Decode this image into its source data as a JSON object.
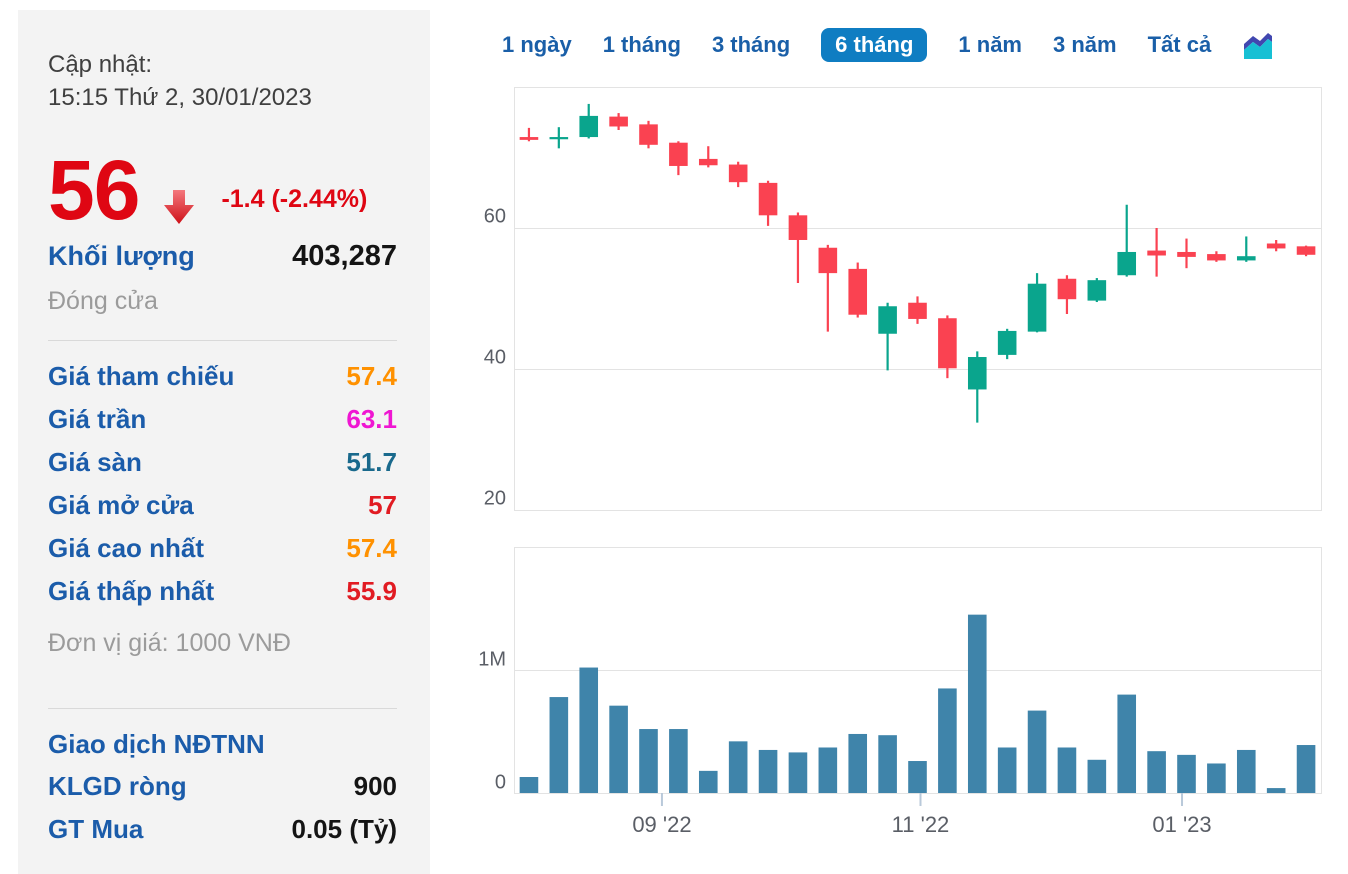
{
  "quote": {
    "updated_label": "Cập nhật:",
    "updated_time": "15:15 Thứ 2, 30/01/2023",
    "price": "56",
    "change": "-1.4 (-2.44%)",
    "direction_icon": "down-arrow-icon",
    "volume_label": "Khối lượng",
    "volume_value": "403,287",
    "close_label": "Đóng cửa",
    "price_rows": [
      {
        "label": "Giá tham chiếu",
        "value": "57.4",
        "color": "#ff9100"
      },
      {
        "label": "Giá trần",
        "value": "63.1",
        "color": "#ef16d2"
      },
      {
        "label": "Giá sàn",
        "value": "51.7",
        "color": "#19698c"
      },
      {
        "label": "Giá mở cửa",
        "value": "57",
        "color": "#e11b22"
      },
      {
        "label": "Giá cao nhất",
        "value": "57.4",
        "color": "#ff9100"
      },
      {
        "label": "Giá thấp nhất",
        "value": "55.9",
        "color": "#e11b22"
      }
    ],
    "unit_note": "Đơn vị giá: 1000 VNĐ",
    "foreign_title": "Giao dịch NĐTNN",
    "foreign_rows": [
      {
        "label": "KLGD ròng",
        "value": "900"
      },
      {
        "label": "GT Mua",
        "value": "0.05 (Tỷ)"
      }
    ],
    "colors": {
      "price_red": "#df0613",
      "label_blue": "#1b5caa",
      "muted_gray": "#9b9b9b"
    }
  },
  "tabs": {
    "items": [
      "1 ngày",
      "1 tháng",
      "3 tháng",
      "6 tháng",
      "1 năm",
      "3 năm",
      "Tất cả"
    ],
    "active_index": 3,
    "active_bg": "#0f7dc2",
    "text_color": "#1a5fa8",
    "icon": "area-chart-icon"
  },
  "chart_data": [
    {
      "type": "candlestick",
      "title": "",
      "xlabel": "",
      "ylabel": "",
      "ylim": [
        20,
        80
      ],
      "grid": true,
      "up_color": "#0aa58d",
      "down_color": "#fa4251",
      "yticks": [
        {
          "label": "60",
          "value": 60
        },
        {
          "label": "40",
          "value": 40
        },
        {
          "label": "20",
          "value": 20
        }
      ],
      "candles": [
        {
          "o": 72.9,
          "h": 74.2,
          "l": 72.3,
          "c": 72.5
        },
        {
          "o": 72.7,
          "h": 74.3,
          "l": 71.3,
          "c": 72.9
        },
        {
          "o": 72.9,
          "h": 77.6,
          "l": 72.7,
          "c": 75.9
        },
        {
          "o": 75.8,
          "h": 76.3,
          "l": 73.9,
          "c": 74.4
        },
        {
          "o": 74.7,
          "h": 75.2,
          "l": 71.3,
          "c": 71.8
        },
        {
          "o": 72.1,
          "h": 72.3,
          "l": 67.5,
          "c": 68.8
        },
        {
          "o": 69.8,
          "h": 71.6,
          "l": 68.6,
          "c": 68.9
        },
        {
          "o": 69.0,
          "h": 69.4,
          "l": 65.8,
          "c": 66.5
        },
        {
          "o": 66.4,
          "h": 66.7,
          "l": 60.3,
          "c": 61.8
        },
        {
          "o": 61.8,
          "h": 62.2,
          "l": 52.2,
          "c": 58.3
        },
        {
          "o": 57.2,
          "h": 57.6,
          "l": 45.3,
          "c": 53.6
        },
        {
          "o": 54.2,
          "h": 55.1,
          "l": 47.3,
          "c": 47.7
        },
        {
          "o": 45.0,
          "h": 49.4,
          "l": 39.8,
          "c": 48.9
        },
        {
          "o": 49.4,
          "h": 50.3,
          "l": 46.4,
          "c": 47.1
        },
        {
          "o": 47.2,
          "h": 47.6,
          "l": 38.7,
          "c": 40.1
        },
        {
          "o": 37.1,
          "h": 42.5,
          "l": 32.4,
          "c": 41.7
        },
        {
          "o": 42.0,
          "h": 45.7,
          "l": 41.4,
          "c": 45.4
        },
        {
          "o": 45.3,
          "h": 53.6,
          "l": 45.2,
          "c": 52.1
        },
        {
          "o": 52.8,
          "h": 53.3,
          "l": 47.8,
          "c": 49.9
        },
        {
          "o": 49.7,
          "h": 52.9,
          "l": 49.5,
          "c": 52.6
        },
        {
          "o": 53.3,
          "h": 63.3,
          "l": 53.1,
          "c": 56.6
        },
        {
          "o": 56.8,
          "h": 60.0,
          "l": 53.1,
          "c": 56.1
        },
        {
          "o": 56.6,
          "h": 58.5,
          "l": 54.3,
          "c": 55.9
        },
        {
          "o": 56.3,
          "h": 56.7,
          "l": 55.2,
          "c": 55.4
        },
        {
          "o": 55.4,
          "h": 58.8,
          "l": 55.2,
          "c": 56.0
        },
        {
          "o": 57.8,
          "h": 58.3,
          "l": 56.7,
          "c": 57.1
        },
        {
          "o": 57.4,
          "h": 57.5,
          "l": 56.0,
          "c": 56.2
        }
      ]
    },
    {
      "type": "bar",
      "title": "",
      "color": "#3f84aa",
      "ylim": [
        0,
        2
      ],
      "grid": true,
      "yticks": [
        {
          "label": "1M",
          "value": 1
        },
        {
          "label": "0",
          "value": 0
        }
      ],
      "values": [
        0.13,
        0.78,
        1.02,
        0.71,
        0.52,
        0.52,
        0.18,
        0.42,
        0.35,
        0.33,
        0.37,
        0.48,
        0.47,
        0.26,
        0.85,
        1.45,
        0.37,
        0.67,
        0.37,
        0.27,
        0.8,
        0.34,
        0.31,
        0.24,
        0.35,
        0.04,
        0.39
      ],
      "x_ticks": [
        {
          "label": "09 '22",
          "pos": 4.45
        },
        {
          "label": "11 '22",
          "pos": 13.1
        },
        {
          "label": "01 '23",
          "pos": 21.85
        }
      ]
    }
  ]
}
